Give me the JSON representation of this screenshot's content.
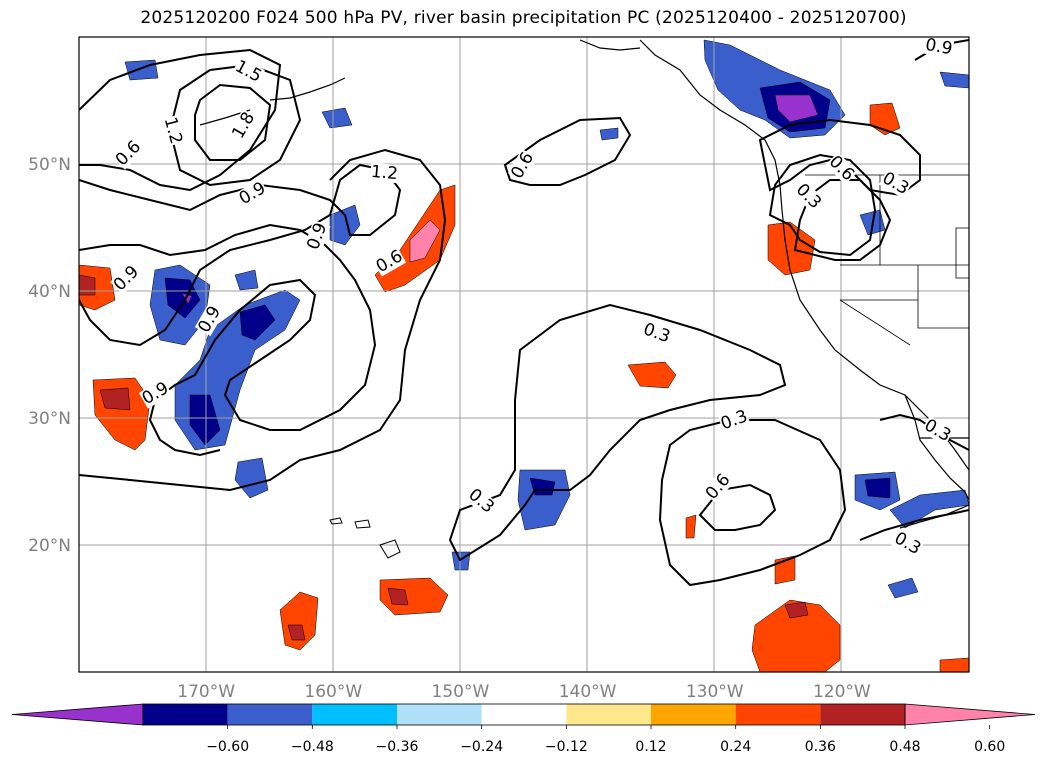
{
  "title": "2025120200 F024 500 hPa PV, river basin precipitation PC (2025120400 - 2025120700)",
  "map": {
    "lon_range": [
      -180,
      -110
    ],
    "lat_range": [
      10,
      60
    ],
    "lon_ticks": [
      {
        "value": -170,
        "label": "170°W"
      },
      {
        "value": -160,
        "label": "160°W"
      },
      {
        "value": -150,
        "label": "150°W"
      },
      {
        "value": -140,
        "label": "140°W"
      },
      {
        "value": -130,
        "label": "130°W"
      },
      {
        "value": -120,
        "label": "120°W"
      }
    ],
    "lat_ticks": [
      {
        "value": 20,
        "label": "20°N"
      },
      {
        "value": 30,
        "label": "30°N"
      },
      {
        "value": 40,
        "label": "40°N"
      },
      {
        "value": 50,
        "label": "50°N"
      }
    ],
    "grid": true,
    "contour_labels": [
      "1.5",
      "1.2",
      "1.8",
      "0.6",
      "0.9",
      "0.9",
      "1.2",
      "0.9",
      "0.6",
      "0.6",
      "0.9",
      "0.9",
      "0.3",
      "0.3",
      "0.3",
      "0.6",
      "0.3",
      "0.3",
      "0.3",
      "0.6",
      "0.3",
      "0.9"
    ]
  },
  "colorbar": {
    "ticks": [
      "−0.60",
      "−0.48",
      "−0.36",
      "−0.24",
      "−0.12",
      "0.12",
      "0.24",
      "0.36",
      "0.48",
      "0.60"
    ],
    "colors": [
      "#9932cc",
      "#00008b",
      "#3a5fcd",
      "#00bfff",
      "#b0e0f8",
      "#ffffff",
      "#ffe78c",
      "#ffa500",
      "#ff4500",
      "#b22222",
      "#ff82ab"
    ],
    "extend": "both"
  }
}
